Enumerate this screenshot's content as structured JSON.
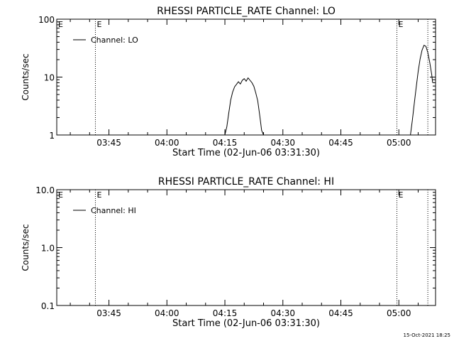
{
  "footer": {
    "timestamp": "15-Oct-2021 18:25"
  },
  "chart_data": [
    {
      "type": "line",
      "title": "RHESSI PARTICLE_RATE Channel: LO",
      "xlabel": "Start Time (02-Jun-06 03:31:30)",
      "ylabel": "Counts/sec",
      "yscale": "log",
      "ylim": [
        1,
        100
      ],
      "yticks": [
        1,
        10,
        100
      ],
      "ytick_labels": [
        "1",
        "10",
        "100"
      ],
      "xlim": [
        "03:31:30",
        "05:09:30"
      ],
      "xticks": [
        "03:45",
        "04:00",
        "04:15",
        "04:30",
        "04:45",
        "05:00"
      ],
      "legend": {
        "placement": "top-left",
        "entries": [
          "Channel: LO"
        ]
      },
      "grid": false,
      "vlines": [
        {
          "time": "03:41:30",
          "style": "dotted",
          "label": "E"
        },
        {
          "time": "04:59:30",
          "style": "dotted",
          "label": "E"
        },
        {
          "time": "05:07:30",
          "style": "dotted",
          "label": ""
        }
      ],
      "series": [
        {
          "name": "Channel: LO",
          "segments": [
            [
              [
                "04:15:00",
                1.0
              ],
              [
                "04:15:30",
                1.4
              ],
              [
                "04:16:00",
                2.4
              ],
              [
                "04:16:30",
                4.0
              ],
              [
                "04:17:00",
                5.5
              ],
              [
                "04:17:30",
                6.8
              ],
              [
                "04:18:00",
                7.5
              ],
              [
                "04:18:30",
                8.3
              ],
              [
                "04:19:00",
                7.6
              ],
              [
                "04:19:30",
                8.8
              ],
              [
                "04:20:00",
                9.4
              ],
              [
                "04:20:30",
                8.5
              ],
              [
                "04:21:00",
                9.7
              ],
              [
                "04:21:30",
                8.8
              ],
              [
                "04:22:00",
                8.0
              ],
              [
                "04:22:30",
                6.9
              ],
              [
                "04:23:00",
                5.3
              ],
              [
                "04:23:30",
                3.9
              ],
              [
                "04:24:00",
                2.2
              ],
              [
                "04:24:30",
                1.2
              ],
              [
                "04:25:00",
                1.0
              ]
            ],
            [
              [
                "05:03:00",
                1.0
              ],
              [
                "05:03:30",
                1.8
              ],
              [
                "05:04:00",
                3.5
              ],
              [
                "05:04:30",
                6.8
              ],
              [
                "05:05:00",
                12.5
              ],
              [
                "05:05:30",
                20.5
              ],
              [
                "05:06:00",
                29.0
              ],
              [
                "05:06:30",
                35.5
              ],
              [
                "05:07:00",
                34.0
              ],
              [
                "05:07:30",
                26.5
              ],
              [
                "05:08:00",
                18.0
              ],
              [
                "05:08:30",
                11.0
              ],
              [
                "05:08:45",
                8.0
              ]
            ]
          ]
        }
      ]
    },
    {
      "type": "line",
      "title": "RHESSI PARTICLE_RATE Channel: HI",
      "xlabel": "Start Time (02-Jun-06 03:31:30)",
      "ylabel": "Counts/sec",
      "yscale": "log",
      "ylim": [
        0.1,
        10
      ],
      "yticks": [
        0.1,
        1,
        10
      ],
      "ytick_labels": [
        "0.1",
        "1.0",
        "10.0"
      ],
      "xlim": [
        "03:31:30",
        "05:09:30"
      ],
      "xticks": [
        "03:45",
        "04:00",
        "04:15",
        "04:30",
        "04:45",
        "05:00"
      ],
      "legend": {
        "placement": "top-left",
        "entries": [
          "Channel: HI"
        ]
      },
      "grid": false,
      "vlines": [
        {
          "time": "03:41:30",
          "style": "dotted",
          "label": "E"
        },
        {
          "time": "04:59:30",
          "style": "dotted",
          "label": "E"
        },
        {
          "time": "05:07:30",
          "style": "dotted",
          "label": ""
        }
      ],
      "series": [
        {
          "name": "Channel: HI",
          "segments": []
        }
      ]
    }
  ]
}
